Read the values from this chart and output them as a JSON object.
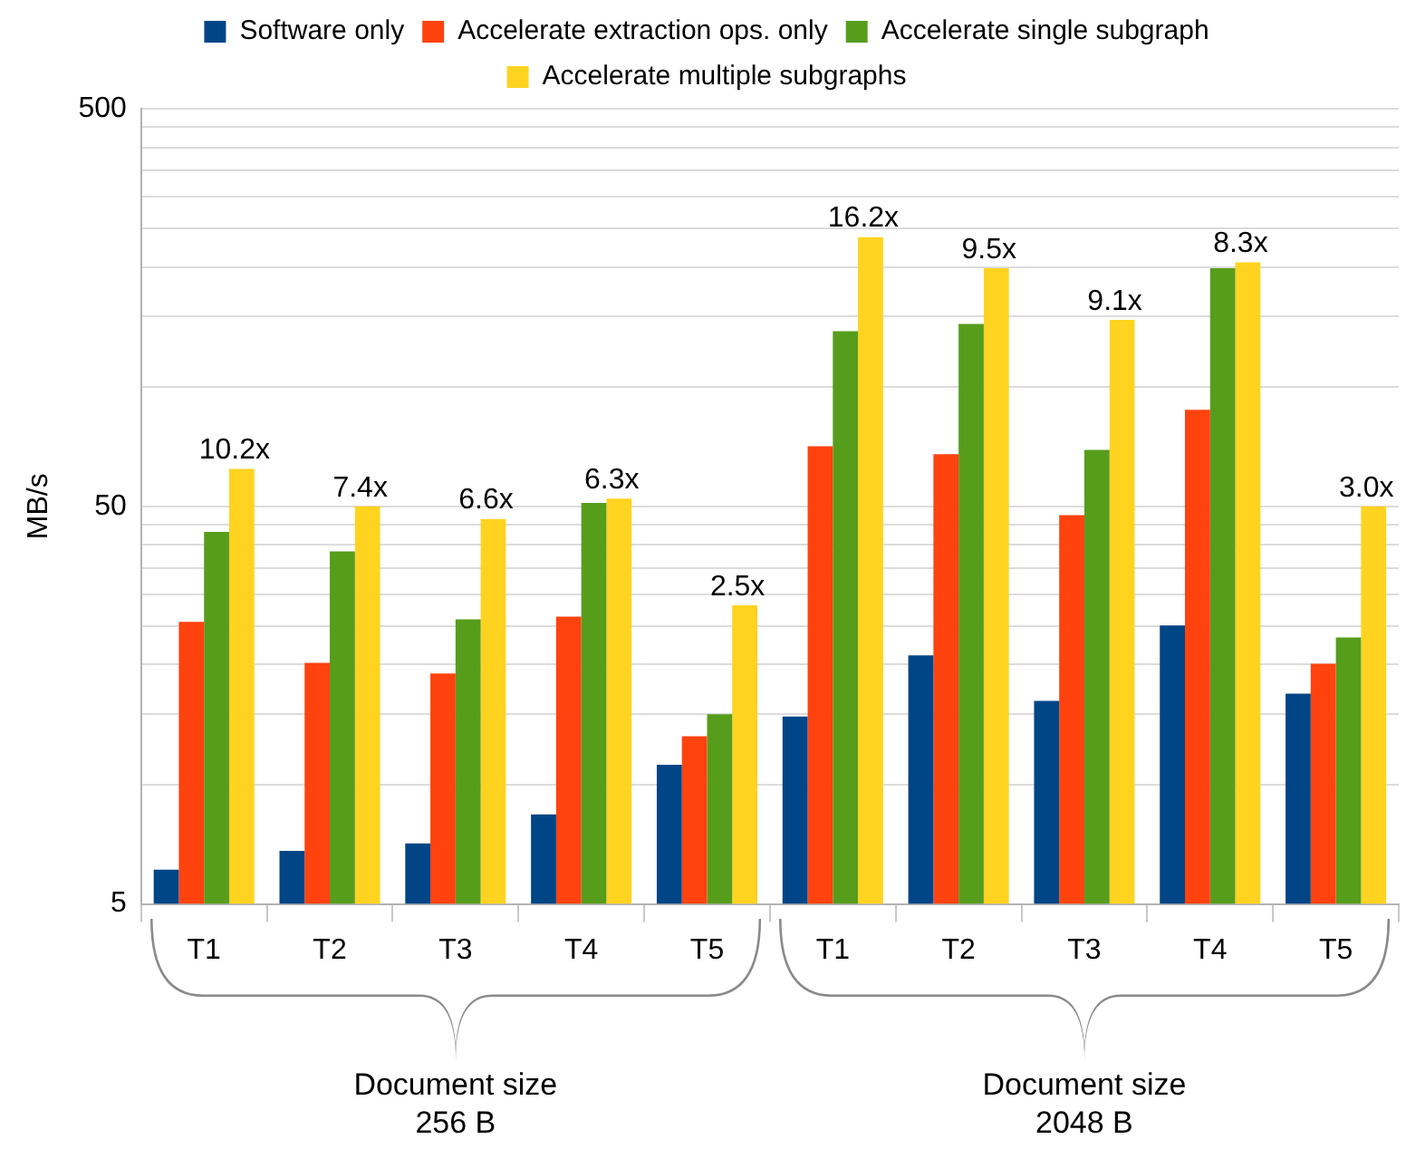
{
  "chart_data": {
    "type": "bar",
    "ylabel": "MB/s",
    "categories": [
      "T1",
      "T2",
      "T3",
      "T4",
      "T5",
      "T1",
      "T2",
      "T3",
      "T4",
      "T5"
    ],
    "series": [
      {
        "name": "Software only",
        "color": "#004586",
        "values": [
          6.1,
          6.8,
          7.1,
          8.4,
          11.2,
          14.8,
          21.1,
          16.2,
          25.1,
          16.9
        ]
      },
      {
        "name": "Accelerate extraction ops. only",
        "color": "#ff420e",
        "values": [
          25.6,
          20.2,
          19.0,
          26.4,
          13.2,
          70.8,
          67.6,
          47.5,
          87.4,
          20.1
        ]
      },
      {
        "name": "Accelerate single subgraph",
        "color": "#579d1c",
        "values": [
          43.1,
          38.5,
          26.0,
          51.0,
          15.0,
          137.9,
          143.8,
          69.3,
          198.5,
          23.4
        ]
      },
      {
        "name": "Accelerate multiple subgraphs",
        "color": "#ffd320",
        "values": [
          62.1,
          50,
          46.5,
          52.3,
          28.2,
          237.8,
          198.5,
          147.2,
          205.5,
          50
        ]
      }
    ],
    "log": "y",
    "ylim": [
      5,
      500
    ],
    "yticks": [
      5,
      {
        "value": 10,
        "label": null
      },
      {
        "value": 15,
        "label": null
      },
      {
        "value": 20,
        "label": null
      },
      {
        "value": 25,
        "label": null
      },
      {
        "value": 30,
        "label": null
      },
      {
        "value": 35,
        "label": null
      },
      {
        "value": 40,
        "label": null
      },
      {
        "value": 45,
        "label": null
      },
      50,
      {
        "value": 100,
        "label": null
      },
      {
        "value": 150,
        "label": null
      },
      {
        "value": 200,
        "label": null
      },
      {
        "value": 250,
        "label": null
      },
      {
        "value": 300,
        "label": null
      },
      {
        "value": 350,
        "label": null
      },
      {
        "value": 400,
        "label": null
      },
      {
        "value": 450,
        "label": null
      },
      500
    ],
    "grid": "y",
    "legend": "top",
    "annotations": [
      {
        "text": "10.2x",
        "y": 62.1
      },
      {
        "text": "7.4x",
        "y": 50
      },
      {
        "text": "6.6x",
        "y": 46.5
      },
      {
        "text": "6.3x",
        "y": 52.3
      },
      {
        "text": "2.5x",
        "y": 28.2
      },
      {
        "text": "16.2x",
        "y": 237.8
      },
      {
        "text": "9.5x",
        "y": 198.5
      },
      {
        "text": "9.1x",
        "y": 147.2
      },
      {
        "text": "8.3x",
        "y": 205.5
      },
      {
        "text": "3.0x",
        "y": 50
      },
      "Document size 256 B",
      "Document size 2048 B"
    ]
  }
}
